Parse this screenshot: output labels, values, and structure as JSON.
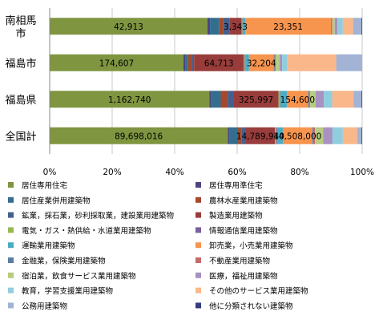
{
  "chart_data": {
    "type": "bar",
    "orientation": "horizontal",
    "stacked": "percent",
    "categories": [
      "南相馬市",
      "福島市",
      "福島県",
      "全国計"
    ],
    "category_lines": [
      [
        "南相馬",
        "市"
      ],
      [
        "福島市"
      ],
      [
        "福島県"
      ],
      [
        "全国計"
      ]
    ],
    "xlim": [
      0,
      100
    ],
    "xticks": [
      "0%",
      "20%",
      "40%",
      "60%",
      "80%",
      "100%"
    ],
    "grid": true,
    "legend_position": "bottom",
    "series": [
      {
        "name": "居住専用住宅",
        "color": "#7F9540",
        "values": [
          50.5,
          42.8,
          51.2,
          57.0
        ]
      },
      {
        "name": "居住専用準住宅",
        "color": "#4B4680",
        "values": [
          0.8,
          0.7,
          0.6,
          0.6
        ]
      },
      {
        "name": "居住産業併用建築物",
        "color": "#336E8F",
        "values": [
          3.0,
          0.8,
          3.0,
          2.4
        ]
      },
      {
        "name": "農林水産業用建築物",
        "color": "#A5492B",
        "values": [
          1.3,
          1.2,
          2.2,
          1.5
        ]
      },
      {
        "name": "鉱業，採石業，砂利採取業，建設業用建築物",
        "color": "#46608E",
        "values": [
          1.9,
          0.7,
          1.9,
          1.2
        ]
      },
      {
        "name": "製造業用建築物",
        "color": "#983D3B",
        "values": [
          3.9,
          15.9,
          14.4,
          9.4
        ]
      },
      {
        "name": "電気・ガス・熱供給・水道業用建築物",
        "color": "#98B954",
        "values": [
          0.3,
          0.3,
          0.5,
          0.4
        ]
      },
      {
        "name": "情報通信業用建築物",
        "color": "#7C5E9F",
        "values": [
          0.1,
          0.2,
          0.1,
          0.3
        ]
      },
      {
        "name": "運輸業用建築物",
        "color": "#4BACC6",
        "values": [
          0.8,
          1.2,
          2.1,
          1.8
        ]
      },
      {
        "name": "卸売業，小売業用建築物",
        "color": "#F7944D",
        "values": [
          27.4,
          7.9,
          6.8,
          9.4
        ]
      },
      {
        "name": "金融業，保険業用建築物",
        "color": "#5C7CA8",
        "values": [
          0.2,
          0.3,
          0.3,
          0.3
        ]
      },
      {
        "name": "不動産業用建築物",
        "color": "#C46B6B",
        "values": [
          0.2,
          0.3,
          0.3,
          0.6
        ]
      },
      {
        "name": "宿泊業，飲食サービス業用建築物",
        "color": "#B7CC82",
        "values": [
          0.8,
          1.3,
          1.8,
          2.6
        ]
      },
      {
        "name": "医療，福祉用建築物",
        "color": "#A792C1",
        "values": [
          0.9,
          0.8,
          2.6,
          3.0
        ]
      },
      {
        "name": "教育，学習支援業用建築物",
        "color": "#8FCDDF",
        "values": [
          1.7,
          1.6,
          2.7,
          3.3
        ]
      },
      {
        "name": "その他のサービス業用建築物",
        "color": "#F9B78A",
        "values": [
          3.3,
          15.7,
          6.9,
          4.6
        ]
      },
      {
        "name": "公務用建築物",
        "color": "#A2B3D6",
        "values": [
          2.7,
          8.3,
          2.5,
          1.4
        ]
      },
      {
        "name": "他に分類されない建築物",
        "color": "#333D7A",
        "values": [
          0.2,
          0.0,
          0.2,
          0.2
        ]
      }
    ],
    "data_labels": [
      {
        "category": 0,
        "series": 0,
        "text": "42,913"
      },
      {
        "category": 0,
        "series": 5,
        "text": "3,343"
      },
      {
        "category": 0,
        "series": 9,
        "text": "23,351"
      },
      {
        "category": 1,
        "series": 0,
        "text": "174,607"
      },
      {
        "category": 1,
        "series": 5,
        "text": "64,713"
      },
      {
        "category": 1,
        "series": 9,
        "text": "32,204"
      },
      {
        "category": 2,
        "series": 0,
        "text": "1,162,740"
      },
      {
        "category": 2,
        "series": 5,
        "text": "325,997"
      },
      {
        "category": 2,
        "series": 9,
        "text": "154,600"
      },
      {
        "category": 3,
        "series": 0,
        "text": "89,698,016"
      },
      {
        "category": 3,
        "series": 5,
        "text": "14,789,940"
      },
      {
        "category": 3,
        "series": 9,
        "text": "14,508,000"
      }
    ]
  }
}
